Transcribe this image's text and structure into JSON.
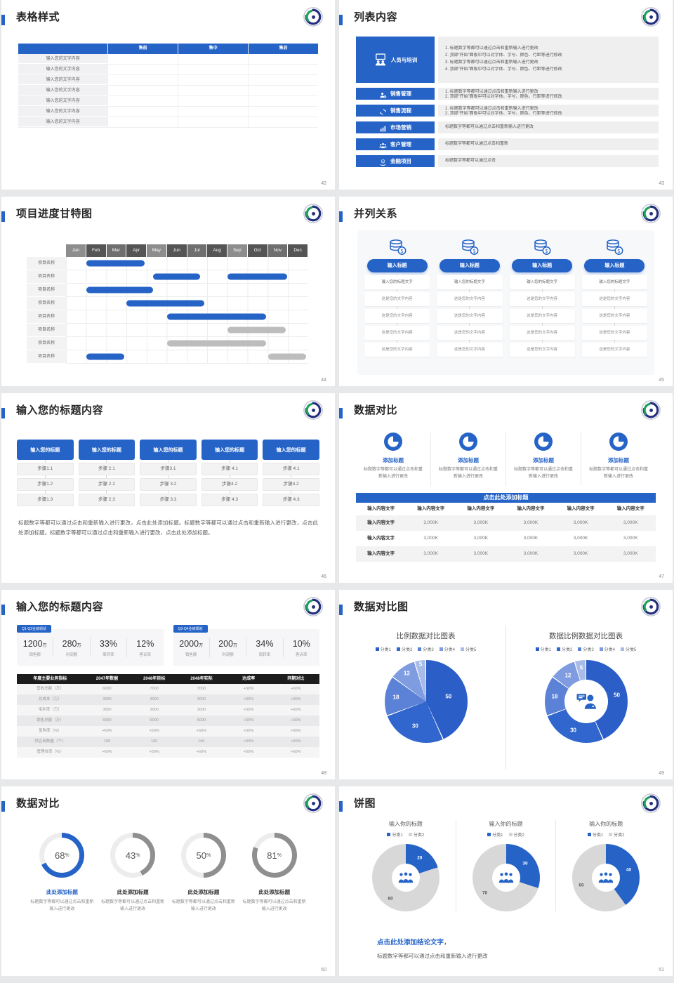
{
  "ui": {
    "accent": "#2563c7",
    "bar_gray": "#bdbdbd",
    "ring_gray": "#8f8f8f",
    "page_bg": "#e7e8ea"
  },
  "slides": [
    {
      "id": "table-style",
      "page": "42",
      "title": "表格样式",
      "table": {
        "headers": [
          "售前",
          "售中",
          "售后"
        ],
        "row_label": "输入您的文字内容",
        "row_count": 7
      }
    },
    {
      "id": "list-content",
      "page": "43",
      "title": "列表内容",
      "items": [
        {
          "icon": "training-people-icon",
          "label": "人员与培训",
          "lines": [
            "1.  标题数字等都可以通过点击和重新输入进行更改",
            "2.  顶部“开始”面板中可以对字体、字号、颜色、行距等进行修改",
            "3.  标题数字等都可以通过点击和重新输入进行更改",
            "4.  顶部“开始”面板中可以对字体、字号、颜色、行距等进行修改"
          ]
        },
        {
          "icon": "person-gear-icon",
          "label": "销售管理",
          "lines": [
            "1.  标题数字等都可以通过点击和重新输入进行更改",
            "2.  顶部“开始”面板中可以对字体、字号、颜色、行距等进行修改"
          ]
        },
        {
          "icon": "cycle-arrows-icon",
          "label": "销售流程",
          "lines": [
            "1.  标题数字等都可以通过点击和重新输入进行更改",
            "2.  顶部“开始”面板中可以对字体、字号、颜色、行距等进行修改"
          ]
        },
        {
          "icon": "bar-chart-icon",
          "label": "市场营销",
          "lines": [
            "标题数字等都可以通过点击和重新输入进行更改"
          ]
        },
        {
          "icon": "people-group-icon",
          "label": "客户管理",
          "lines": [
            "标题数字等都可以通过点击和重新"
          ]
        },
        {
          "icon": "finance-coin-icon",
          "label": "金融项目",
          "lines": [
            "标题数字等都可以通过点击"
          ]
        }
      ]
    },
    {
      "id": "gantt",
      "page": "44",
      "title": "项目进度甘特图",
      "months": [
        "Jan",
        "Feb",
        "Mar",
        "Apr",
        "May",
        "Jun",
        "Jul",
        "Aug",
        "Sep",
        "Oct",
        "Nov",
        "Dec"
      ],
      "row_label": "项目名称",
      "row_count": 8,
      "bars": [
        {
          "row": 0,
          "start": 1.0,
          "end": 3.9,
          "color": "blue"
        },
        {
          "row": 1,
          "start": 4.3,
          "end": 6.65,
          "color": "blue"
        },
        {
          "row": 1,
          "start": 8.0,
          "end": 10.95,
          "color": "blue"
        },
        {
          "row": 2,
          "start": 1.0,
          "end": 4.3,
          "color": "blue"
        },
        {
          "row": 3,
          "start": 3.0,
          "end": 6.85,
          "color": "blue"
        },
        {
          "row": 4,
          "start": 5.0,
          "end": 9.9,
          "color": "blue"
        },
        {
          "row": 5,
          "start": 8.0,
          "end": 10.9,
          "color": "gray"
        },
        {
          "row": 6,
          "start": 5.0,
          "end": 9.9,
          "color": "gray"
        },
        {
          "row": 7,
          "start": 1.0,
          "end": 2.9,
          "color": "blue"
        },
        {
          "row": 7,
          "start": 10.0,
          "end": 11.9,
          "color": "gray"
        }
      ]
    },
    {
      "id": "parallel",
      "page": "45",
      "title": "并列关系",
      "icon": "coin-stack-icon",
      "column_title": "输入标题",
      "column_count": 4,
      "rows": [
        "输入您的标题文字",
        "这是您的文字内容",
        "这是您的文字内容",
        "这是您的文字内容",
        "这是您的文字内容"
      ]
    },
    {
      "id": "steps",
      "page": "46",
      "title": "输入您的标题内容",
      "header": "输入您的标题",
      "columns": [
        [
          "步骤1.1",
          "步骤1.2",
          "步骤1.3"
        ],
        [
          "步骤 2.1",
          "步骤 2.2",
          "步骤 2.3"
        ],
        [
          "步骤3.1",
          "步骤 3.2",
          "步骤 3.3"
        ],
        [
          "步骤 4.1",
          "步骤4.2",
          "步骤 4.3"
        ],
        [
          "步骤 4.1",
          "步骤4.2",
          "步骤 4.3"
        ]
      ],
      "paragraph": "标题数字等都可以通过点击和重新输入进行更改，点击此处添加标题。标题数字等都可以通过点击和重新输入进行更改，点击此处添加标题。标题数字等都可以通过点击和重新输入进行更改，点击此处添加标题。"
    },
    {
      "id": "data-compare",
      "page": "47",
      "title": "数据对比",
      "feature": {
        "icon": "pie-chart-icon",
        "title": "添加标题",
        "desc": "标题数字等都可以通过点击和重新输入进行更改",
        "count": 4
      },
      "banner": "点击此处添加标题",
      "table": {
        "header": [
          "输入内容文字",
          "输入内容文字",
          "输入内容文字",
          "输入内容文字",
          "输入内容文字",
          "输入内容文字"
        ],
        "rows": [
          [
            "输入内容文字",
            "3,000K",
            "3,000K",
            "3,000K",
            "3,000K",
            "3,000K"
          ],
          [
            "输入内容文字",
            "3,000K",
            "3,000K",
            "3,000K",
            "3,000K",
            "3,000K"
          ],
          [
            "输入内容文字",
            "3,000K",
            "3,000K",
            "3,000K",
            "3,000K",
            "3,000K"
          ]
        ]
      }
    },
    {
      "id": "kpi",
      "page": "48",
      "title": "输入您的标题内容",
      "panels": [
        {
          "tag": "Q1-Q2业绩现状",
          "stats": [
            {
              "v": "1200",
              "u": "万",
              "l": "销售额"
            },
            {
              "v": "280",
              "u": "万",
              "l": "利润额"
            },
            {
              "v": "33%",
              "u": "",
              "l": "周转率"
            },
            {
              "v": "12%",
              "u": "",
              "l": "客诉率"
            }
          ]
        },
        {
          "tag": "Q3-Q4业绩规划",
          "stats": [
            {
              "v": "2000",
              "u": "万",
              "l": "销售额"
            },
            {
              "v": "200",
              "u": "万",
              "l": "利润额"
            },
            {
              "v": "34%",
              "u": "",
              "l": "周转率"
            },
            {
              "v": "10%",
              "u": "",
              "l": "客诉率"
            }
          ]
        }
      ],
      "table": {
        "header": [
          "年度主要业务指标",
          "2047年数据",
          "2048年目标",
          "2048年实际",
          "达成率",
          "同期对比"
        ],
        "rows": [
          [
            "营收总额（万）",
            "6000",
            "7000",
            "7000",
            "+50%",
            "+60%"
          ],
          [
            "总成本（万）",
            "3000",
            "3000",
            "3000",
            "+50%",
            "+60%"
          ],
          [
            "毛利率（万）",
            "3000",
            "3000",
            "3000",
            "+50%",
            "+60%"
          ],
          [
            "销售总额（万）",
            "6000",
            "6000",
            "6000",
            "+50%",
            "+60%"
          ],
          [
            "复购率（%）",
            "+60%",
            "+50%",
            "+60%",
            "+50%",
            "+60%"
          ],
          [
            "供应商数量（个）",
            "100",
            "100",
            "100",
            "+50%",
            "+60%"
          ],
          [
            "管理效率（%）",
            "+60%",
            "+50%",
            "+60%",
            "+50%",
            "+60%"
          ]
        ]
      }
    },
    {
      "id": "pie-compare",
      "page": "49",
      "title": "数据对比图",
      "charts": [
        {
          "type": "pie",
          "title": "比例数据对比图表",
          "legend": [
            "分类1",
            "分类2",
            "分类3",
            "分类4",
            "分类5"
          ],
          "values": [
            50,
            30,
            18,
            12,
            5
          ],
          "colors": [
            "#2b5fc7",
            "#3066cd",
            "#5b82d6",
            "#7f9ce0",
            "#a9bce9"
          ]
        },
        {
          "type": "donut",
          "title": "数据比例数据对比图表",
          "legend": [
            "分类1",
            "分类2",
            "分类3",
            "分类4",
            "分类5"
          ],
          "values": [
            50,
            30,
            18,
            12,
            5
          ],
          "colors": [
            "#2b5fc7",
            "#3066cd",
            "#5b82d6",
            "#7f9ce0",
            "#a9bce9"
          ],
          "center_icon": "person-chat-icon"
        }
      ]
    },
    {
      "id": "rings",
      "page": "50",
      "title": "数据对比",
      "ring_title": "此处添加标题",
      "ring_desc": "标题数字等都可以通过点击和重新输入进行更改",
      "rings": [
        {
          "pct": 68,
          "highlight": true
        },
        {
          "pct": 43
        },
        {
          "pct": 50
        },
        {
          "pct": 81
        }
      ]
    },
    {
      "id": "pies",
      "page": "51",
      "title": "饼图",
      "charts": [
        {
          "title": "输入你的标题",
          "legend": [
            "分类1",
            "分类2"
          ],
          "values": [
            20,
            80
          ]
        },
        {
          "title": "输入你的标题",
          "legend": [
            "分类1",
            "分类2"
          ],
          "values": [
            30,
            70
          ]
        },
        {
          "title": "输入你的标题",
          "legend": [
            "分类1",
            "分类2"
          ],
          "values": [
            40,
            60
          ]
        }
      ],
      "center_icon": "people-group-blue-icon",
      "conclusion_title": "点击此处添加结论文字",
      "conclusion_comma": "，",
      "conclusion_text": "标题数字等都可以通过点击和重新输入进行更改"
    }
  ],
  "chart_data": [
    {
      "type": "pie",
      "title": "比例数据对比图表",
      "labels": [
        "分类1",
        "分类2",
        "分类3",
        "分类4",
        "分类5"
      ],
      "values": [
        50,
        30,
        18,
        12,
        5
      ],
      "legend_position": "top"
    },
    {
      "type": "pie",
      "title": "数据比例数据对比图表",
      "labels": [
        "分类1",
        "分类2",
        "分类3",
        "分类4",
        "分类5"
      ],
      "values": [
        50,
        30,
        18,
        12,
        5
      ],
      "legend_position": "top",
      "donut": true
    },
    {
      "type": "pie",
      "title": "数据对比环形进度",
      "labels": [
        "此处添加标题",
        "此处添加标题",
        "此处添加标题",
        "此处添加标题"
      ],
      "values": [
        68,
        43,
        50,
        81
      ],
      "unit": "%"
    },
    {
      "type": "pie",
      "title": "输入你的标题",
      "labels": [
        "分类1",
        "分类2"
      ],
      "values": [
        20,
        80
      ],
      "donut": true
    },
    {
      "type": "pie",
      "title": "输入你的标题",
      "labels": [
        "分类1",
        "分类2"
      ],
      "values": [
        30,
        70
      ],
      "donut": true
    },
    {
      "type": "pie",
      "title": "输入你的标题",
      "labels": [
        "分类1",
        "分类2"
      ],
      "values": [
        40,
        60
      ],
      "donut": true
    }
  ]
}
